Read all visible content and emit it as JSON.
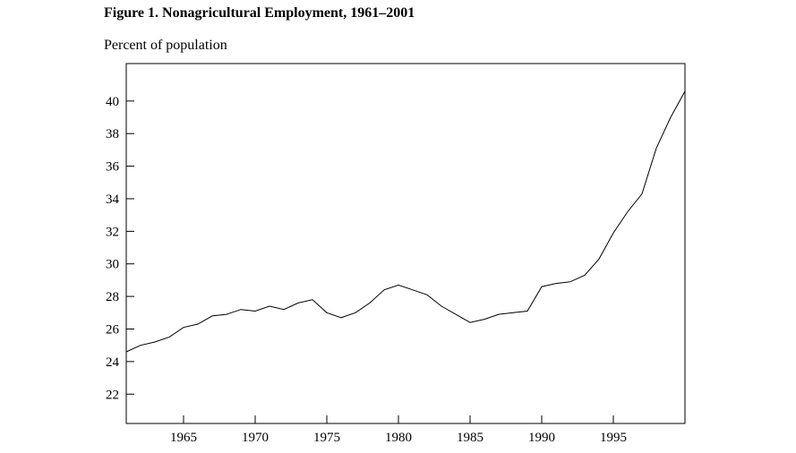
{
  "figure": {
    "title": "Figure 1.  Nonagricultural Employment, 1961–2001",
    "ylabel": "Percent of population"
  },
  "chart_data": {
    "type": "line",
    "title": "Figure 1.  Nonagricultural Employment, 1961–2001",
    "xlabel": "",
    "ylabel": "Percent of population",
    "xlim": [
      1961,
      2000
    ],
    "ylim": [
      20.2,
      42.3
    ],
    "x_ticks": [
      1965,
      1970,
      1975,
      1980,
      1985,
      1990,
      1995
    ],
    "y_ticks": [
      22,
      24,
      26,
      28,
      30,
      32,
      34,
      36,
      38,
      40
    ],
    "grid": false,
    "legend": "none",
    "series": [
      {
        "x": [
          1961,
          1962,
          1963,
          1964,
          1965,
          1966,
          1967,
          1968,
          1969,
          1970,
          1971,
          1972,
          1973,
          1974,
          1975,
          1976,
          1977,
          1978,
          1979,
          1980,
          1981,
          1982,
          1983,
          1984,
          1985,
          1986,
          1987,
          1988,
          1989,
          1990,
          1991,
          1992,
          1993,
          1994,
          1995,
          1996,
          1997,
          1998,
          1999,
          2000
        ],
        "values": [
          24.6,
          25.0,
          25.2,
          25.5,
          26.1,
          26.3,
          26.8,
          26.9,
          27.2,
          27.1,
          27.4,
          27.2,
          27.6,
          27.8,
          27.0,
          26.7,
          27.0,
          27.6,
          28.4,
          28.7,
          28.4,
          28.1,
          27.4,
          26.9,
          26.4,
          26.6,
          26.9,
          27.0,
          27.1,
          28.6,
          28.8,
          28.9,
          29.3,
          30.3,
          31.9,
          33.2,
          34.3,
          37.1,
          39.0,
          40.6
        ]
      }
    ]
  }
}
